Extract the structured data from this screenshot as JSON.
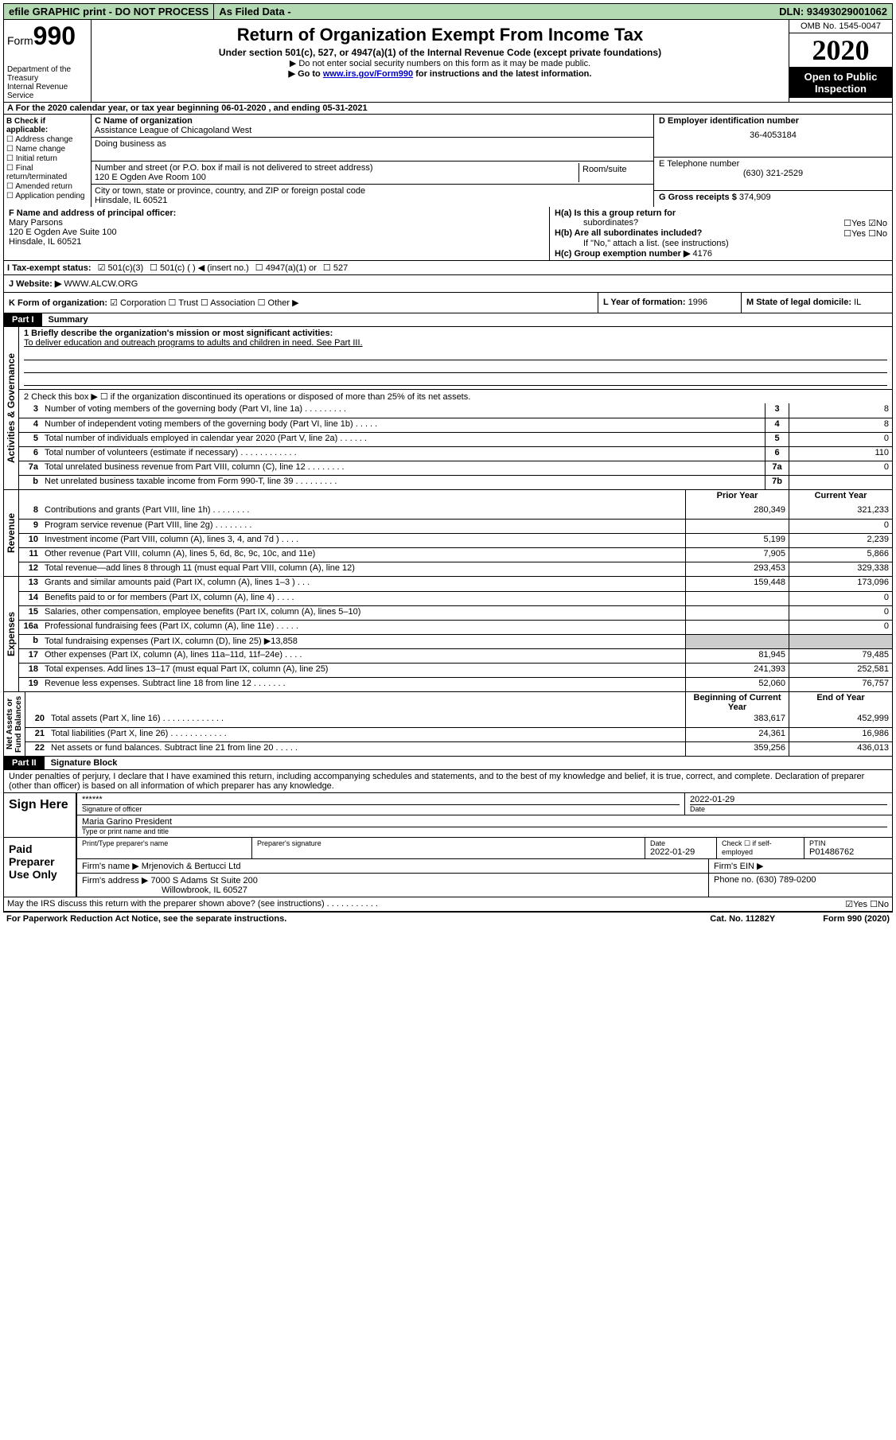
{
  "topbar": {
    "efile": "efile GRAPHIC print - DO NOT PROCESS",
    "asfiled": "As Filed Data -",
    "dln": "DLN: 93493029001062"
  },
  "header": {
    "form_label": "Form",
    "form_num": "990",
    "dept": "Department of the Treasury\nInternal Revenue Service",
    "title": "Return of Organization Exempt From Income Tax",
    "sub1": "Under section 501(c), 527, or 4947(a)(1) of the Internal Revenue Code (except private foundations)",
    "sub2": "▶ Do not enter social security numbers on this form as it may be made public.",
    "sub3_pre": "▶ Go to ",
    "sub3_link": "www.irs.gov/Form990",
    "sub3_post": " for instructions and the latest information.",
    "omb": "OMB No. 1545-0047",
    "year": "2020",
    "inspect": "Open to Public Inspection"
  },
  "rowA": "A  For the 2020 calendar year, or tax year beginning 06-01-2020   , and ending 05-31-2021",
  "B": {
    "title": "B Check if applicable:",
    "items": [
      "☐ Address change",
      "☐ Name change",
      "☐ Initial return",
      "☐ Final return/terminated",
      "☐ Amended return",
      "☐ Application pending"
    ]
  },
  "C": {
    "name_lbl": "C Name of organization",
    "name": "Assistance League of Chicagoland West",
    "dba_lbl": "Doing business as",
    "street_lbl": "Number and street (or P.O. box if mail is not delivered to street address)",
    "street": "120 E Ogden Ave Room 100",
    "room_lbl": "Room/suite",
    "city_lbl": "City or town, state or province, country, and ZIP or foreign postal code",
    "city": "Hinsdale, IL  60521"
  },
  "D": {
    "lbl": "D Employer identification number",
    "val": "36-4053184"
  },
  "E": {
    "lbl": "E Telephone number",
    "val": "(630) 321-2529"
  },
  "G": {
    "lbl": "G Gross receipts $",
    "val": "374,909"
  },
  "F": {
    "lbl": "F  Name and address of principal officer:",
    "name": "Mary Parsons",
    "street": "120 E Ogden Ave Suite 100",
    "city": "Hinsdale, IL  60521"
  },
  "H": {
    "a_lbl": "H(a)  Is this a group return for",
    "a_sub": "subordinates?",
    "a_ans": "☐Yes ☑No",
    "b_lbl": "H(b) Are all subordinates included?",
    "b_ans": "☐Yes ☐No",
    "b_note": "If \"No,\" attach a list. (see instructions)",
    "c_lbl": "H(c)  Group exemption number ▶",
    "c_val": "4176"
  },
  "I": {
    "lbl": "I  Tax-exempt status:",
    "opts": [
      "☑ 501(c)(3)",
      "☐ 501(c) (  ) ◀ (insert no.)",
      "☐ 4947(a)(1) or",
      "☐ 527"
    ]
  },
  "J": {
    "lbl": "J  Website: ▶",
    "val": "WWW.ALCW.ORG"
  },
  "K": {
    "lbl": "K Form of organization:",
    "opts": "☑ Corporation  ☐ Trust  ☐ Association  ☐ Other ▶"
  },
  "L": {
    "lbl": "L Year of formation:",
    "val": "1996"
  },
  "M": {
    "lbl": "M State of legal domicile:",
    "val": "IL"
  },
  "PartI": {
    "num": "Part I",
    "title": "Summary"
  },
  "summary": {
    "line1_lbl": "1 Briefly describe the organization's mission or most significant activities:",
    "line1_txt": "To deliver education and outreach programs to adults and children in need. See Part III.",
    "line2": "2   Check this box ▶ ☐ if the organization discontinued its operations or disposed of more than 25% of its net assets.",
    "rows_gov": [
      {
        "n": "3",
        "lab": "Number of voting members of the governing body (Part VI, line 1a)  .    .    .    .    .    .    .    .    .",
        "box": "3",
        "v": "8"
      },
      {
        "n": "4",
        "lab": "Number of independent voting members of the governing body (Part VI, line 1b)  .    .    .    .    .",
        "box": "4",
        "v": "8"
      },
      {
        "n": "5",
        "lab": "Total number of individuals employed in calendar year 2020 (Part V, line 2a)  .    .    .    .    .    .",
        "box": "5",
        "v": "0"
      },
      {
        "n": "6",
        "lab": "Total number of volunteers (estimate if necessary)  .    .    .    .    .    .    .    .    .    .    .    .",
        "box": "6",
        "v": "110"
      },
      {
        "n": "7a",
        "lab": "Total unrelated business revenue from Part VIII, column (C), line 12  .    .    .    .    .    .    .    .",
        "box": "7a",
        "v": "0"
      },
      {
        "n": "b",
        "lab": "Net unrelated business taxable income from Form 990-T, line 39  .    .    .    .    .    .    .    .    .",
        "box": "7b",
        "v": ""
      }
    ],
    "hdr_prior": "Prior Year",
    "hdr_curr": "Current Year",
    "rows_rev": [
      {
        "n": "8",
        "lab": "Contributions and grants (Part VIII, line 1h)  .    .    .    .    .    .    .    .",
        "p": "280,349",
        "c": "321,233"
      },
      {
        "n": "9",
        "lab": "Program service revenue (Part VIII, line 2g)  .    .    .    .    .    .    .    .",
        "p": "",
        "c": "0"
      },
      {
        "n": "10",
        "lab": "Investment income (Part VIII, column (A), lines 3, 4, and 7d )  .    .    .    .",
        "p": "5,199",
        "c": "2,239"
      },
      {
        "n": "11",
        "lab": "Other revenue (Part VIII, column (A), lines 5, 6d, 8c, 9c, 10c, and 11e)",
        "p": "7,905",
        "c": "5,866"
      },
      {
        "n": "12",
        "lab": "Total revenue—add lines 8 through 11 (must equal Part VIII, column (A), line 12)",
        "p": "293,453",
        "c": "329,338"
      }
    ],
    "rows_exp": [
      {
        "n": "13",
        "lab": "Grants and similar amounts paid (Part IX, column (A), lines 1–3 )  .    .    .",
        "p": "159,448",
        "c": "173,096"
      },
      {
        "n": "14",
        "lab": "Benefits paid to or for members (Part IX, column (A), line 4)  .    .    .    .",
        "p": "",
        "c": "0"
      },
      {
        "n": "15",
        "lab": "Salaries, other compensation, employee benefits (Part IX, column (A), lines 5–10)",
        "p": "",
        "c": "0"
      },
      {
        "n": "16a",
        "lab": "Professional fundraising fees (Part IX, column (A), line 11e)  .    .    .    .    .",
        "p": "",
        "c": "0"
      },
      {
        "n": "b",
        "lab": "Total fundraising expenses (Part IX, column (D), line 25) ▶13,858",
        "p": "shade",
        "c": "shade"
      },
      {
        "n": "17",
        "lab": "Other expenses (Part IX, column (A), lines 11a–11d, 11f–24e)  .    .    .    .",
        "p": "81,945",
        "c": "79,485"
      },
      {
        "n": "18",
        "lab": "Total expenses. Add lines 13–17 (must equal Part IX, column (A), line 25)",
        "p": "241,393",
        "c": "252,581"
      },
      {
        "n": "19",
        "lab": "Revenue less expenses. Subtract line 18 from line 12  .    .    .    .    .    .    .",
        "p": "52,060",
        "c": "76,757"
      }
    ],
    "hdr_beg": "Beginning of Current Year",
    "hdr_end": "End of Year",
    "rows_net": [
      {
        "n": "20",
        "lab": "Total assets (Part X, line 16)  .    .    .    .    .    .    .    .    .    .    .    .    .",
        "p": "383,617",
        "c": "452,999"
      },
      {
        "n": "21",
        "lab": "Total liabilities (Part X, line 26)  .    .    .    .    .    .    .    .    .    .    .    .",
        "p": "24,361",
        "c": "16,986"
      },
      {
        "n": "22",
        "lab": "Net assets or fund balances. Subtract line 21 from line 20  .    .    .    .    .",
        "p": "359,256",
        "c": "436,013"
      }
    ],
    "vlab_gov": "Activities & Governance",
    "vlab_rev": "Revenue",
    "vlab_exp": "Expenses",
    "vlab_net": "Net Assets or\nFund Balances"
  },
  "PartII": {
    "num": "Part II",
    "title": "Signature Block"
  },
  "sig": {
    "intro": "Under penalties of perjury, I declare that I have examined this return, including accompanying schedules and statements, and to the best of my knowledge and belief, it is true, correct, and complete. Declaration of preparer (other than officer) is based on all information of which preparer has any knowledge.",
    "sign_here": "Sign Here",
    "stars": "******",
    "sig_off_lbl": "Signature of officer",
    "date1": "2022-01-29",
    "date_lbl": "Date",
    "officer": "Maria Garino President",
    "type_lbl": "Type or print name and title",
    "paid": "Paid Preparer Use Only",
    "prep_name_lbl": "Print/Type preparer's name",
    "prep_sig_lbl": "Preparer's signature",
    "date2": "2022-01-29",
    "check_self": "Check ☐ if self-employed",
    "ptin_lbl": "PTIN",
    "ptin": "P01486762",
    "firm_name_lbl": "Firm's name    ▶",
    "firm_name": "Mrjenovich & Bertucci Ltd",
    "firm_ein_lbl": "Firm's EIN ▶",
    "firm_addr_lbl": "Firm's address ▶",
    "firm_addr1": "7000 S Adams St Suite 200",
    "firm_addr2": "Willowbrook, IL  60527",
    "phone_lbl": "Phone no.",
    "phone": "(630) 789-0200",
    "may_irs": "May the IRS discuss this return with the preparer shown above? (see instructions)  .    .    .    .    .    .    .    .    .    .    .",
    "may_ans": "☑Yes ☐No"
  },
  "footer": {
    "left": "For Paperwork Reduction Act Notice, see the separate instructions.",
    "mid": "Cat. No. 11282Y",
    "right": "Form 990 (2020)"
  }
}
